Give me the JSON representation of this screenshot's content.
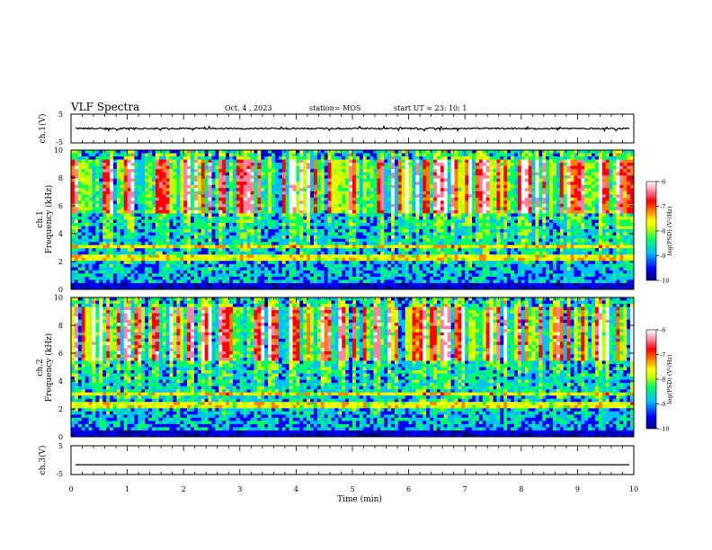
{
  "header": {
    "title": "VLF Spectra",
    "date": "Oct. 4 , 2023",
    "station": "station= MOS",
    "start": "start UT = 23: 10: 1"
  },
  "chart_data": [
    {
      "type": "line",
      "name": "waveform-ch1",
      "ylabel": "ch.1(V)",
      "ylim": [
        -5,
        5
      ],
      "yticks": [
        "5",
        "-5"
      ],
      "x": [
        0,
        10
      ],
      "y": [
        0,
        0
      ]
    },
    {
      "type": "heatmap",
      "name": "spectrogram-ch1",
      "ylabel": "ch.1\nFrequency (kHz)",
      "ylim": [
        0,
        10
      ],
      "yticks": [
        "0",
        "2",
        "4",
        "6",
        "8",
        "10"
      ],
      "colorbar": {
        "label": "log(PSD) (V²/Hz)",
        "range": [
          -10,
          -6
        ],
        "ticks": [
          "-6",
          "-7",
          "-8",
          "-9",
          "-10"
        ],
        "colors": [
          "#000080",
          "#0000ff",
          "#00c0ff",
          "#00ff60",
          "#c0ff00",
          "#ffff00",
          "#ff8000",
          "#ff0000",
          "#ff80a0",
          "#ffffff"
        ]
      }
    },
    {
      "type": "heatmap",
      "name": "spectrogram-ch2",
      "ylabel": "ch.2\nFrequency (kHz)",
      "ylim": [
        0,
        10
      ],
      "yticks": [
        "0",
        "2",
        "4",
        "6",
        "8",
        "10"
      ],
      "colorbar": {
        "label": "log(PSD) (V²/Hz)",
        "range": [
          -10,
          -6
        ],
        "ticks": [
          "-6",
          "-7",
          "-8",
          "-9",
          "-10"
        ],
        "colors": [
          "#000080",
          "#0000ff",
          "#00c0ff",
          "#00ff60",
          "#c0ff00",
          "#ffff00",
          "#ff8000",
          "#ff0000",
          "#ff80a0",
          "#ffffff"
        ]
      }
    },
    {
      "type": "line",
      "name": "waveform-ch3",
      "ylabel": "ch.3(V)",
      "ylim": [
        -5,
        5
      ],
      "yticks": [
        "5",
        "-5"
      ],
      "x": [
        0,
        10
      ],
      "y": [
        -1.6,
        -1.6
      ]
    }
  ],
  "xaxis": {
    "label": "Time (min)",
    "range": [
      0,
      10
    ],
    "ticks": [
      "0",
      "1",
      "2",
      "3",
      "4",
      "5",
      "6",
      "7",
      "8",
      "9",
      "10"
    ]
  }
}
